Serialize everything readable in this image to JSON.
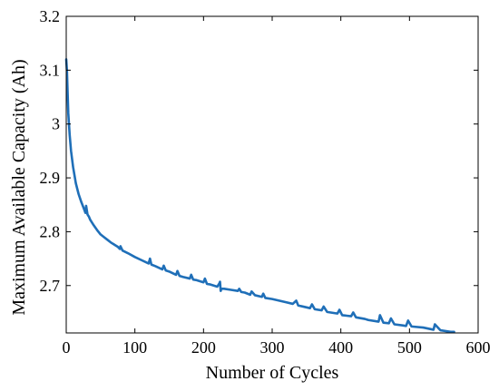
{
  "chart_data": {
    "type": "line",
    "xlabel": "Number of Cycles",
    "ylabel": "Maximum Available Capacity   (Ah)",
    "xlim": [
      0,
      600
    ],
    "ylim": [
      2.612,
      3.2
    ],
    "xticks": [
      0,
      100,
      200,
      300,
      400,
      500,
      600
    ],
    "yticks": [
      2.7,
      2.8,
      2.9,
      3,
      3.1,
      3.2
    ],
    "xtick_labels": [
      "0",
      "100",
      "200",
      "300",
      "400",
      "500",
      "600"
    ],
    "ytick_labels": [
      "2.7",
      "2.8",
      "2.9",
      "3",
      "3.1",
      "3.2"
    ],
    "grid": false,
    "line_color": "#1f6fb8",
    "series": [
      {
        "x": [
          0,
          1,
          2,
          3,
          5,
          7,
          10,
          14,
          18,
          22,
          26,
          28,
          29,
          31,
          33,
          35,
          40,
          45,
          50,
          55,
          60,
          65,
          70,
          75,
          78,
          79,
          82,
          90,
          100,
          110,
          120,
          122,
          124,
          130,
          140,
          142,
          145,
          150,
          160,
          162,
          165,
          170,
          180,
          182,
          185,
          190,
          200,
          202,
          205,
          210,
          220,
          223,
          224,
          225,
          226,
          230,
          240,
          250,
          252,
          255,
          260,
          268,
          270,
          275,
          285,
          287,
          290,
          300,
          310,
          320,
          330,
          335,
          338,
          345,
          355,
          358,
          362,
          372,
          375,
          380,
          395,
          398,
          402,
          415,
          418,
          422,
          435,
          440,
          455,
          457,
          462,
          470,
          473,
          478,
          490,
          495,
          498,
          503,
          520,
          535,
          537,
          545,
          560,
          565
        ],
        "y": [
          3.12,
          3.1,
          3.06,
          3.02,
          2.98,
          2.95,
          2.92,
          2.89,
          2.87,
          2.855,
          2.842,
          2.835,
          2.848,
          2.832,
          2.828,
          2.822,
          2.812,
          2.803,
          2.795,
          2.79,
          2.785,
          2.78,
          2.776,
          2.772,
          2.768,
          2.773,
          2.765,
          2.76,
          2.753,
          2.747,
          2.741,
          2.75,
          2.739,
          2.736,
          2.73,
          2.737,
          2.728,
          2.726,
          2.72,
          2.727,
          2.718,
          2.716,
          2.713,
          2.72,
          2.711,
          2.71,
          2.706,
          2.713,
          2.703,
          2.702,
          2.698,
          2.704,
          2.707,
          2.69,
          2.694,
          2.694,
          2.692,
          2.69,
          2.694,
          2.688,
          2.687,
          2.683,
          2.689,
          2.682,
          2.679,
          2.685,
          2.677,
          2.675,
          2.672,
          2.669,
          2.666,
          2.672,
          2.663,
          2.661,
          2.658,
          2.665,
          2.656,
          2.654,
          2.661,
          2.651,
          2.648,
          2.655,
          2.645,
          2.643,
          2.65,
          2.641,
          2.638,
          2.636,
          2.633,
          2.645,
          2.631,
          2.63,
          2.639,
          2.628,
          2.626,
          2.625,
          2.635,
          2.624,
          2.622,
          2.618,
          2.628,
          2.617,
          2.614,
          2.614
        ]
      }
    ]
  }
}
